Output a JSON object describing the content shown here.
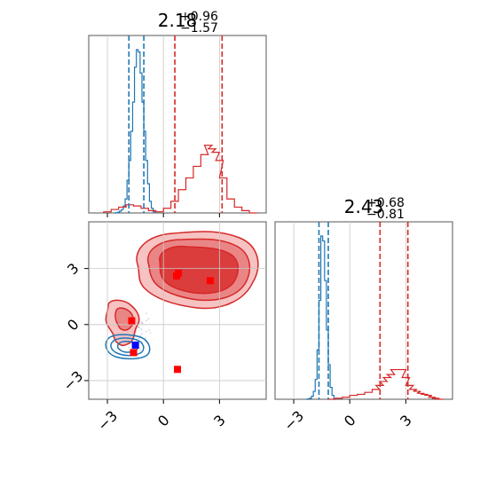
{
  "chart_data": [
    {
      "type": "histogram",
      "panel": "marginal-x",
      "title_main": "2.18",
      "title_sup": "+0.96",
      "title_sub": "−1.57",
      "xlim": [
        -4.0,
        5.5
      ],
      "series": [
        {
          "color": "#1f77b4",
          "quantiles": [
            -1.85,
            -1.05
          ],
          "x": [
            -2.6,
            -2.5,
            -2.4,
            -2.3,
            -2.2,
            -2.1,
            -2.0,
            -1.9,
            -1.8,
            -1.7,
            -1.6,
            -1.5,
            -1.4,
            -1.3,
            -1.2,
            -1.1,
            -1.0,
            -0.9,
            -0.8,
            -0.7,
            -0.6,
            -0.5
          ],
          "y": [
            0,
            0.2,
            0.6,
            1.5,
            3,
            6,
            12,
            28,
            45,
            70,
            95,
            125,
            140,
            138,
            120,
            95,
            70,
            45,
            25,
            10,
            4,
            1
          ]
        },
        {
          "color": "#d62728",
          "quantiles": [
            0.61,
            3.14
          ],
          "x": [
            -3.0,
            -2.6,
            -2.2,
            -1.8,
            -1.4,
            -1.0,
            -0.6,
            -0.2,
            0.2,
            0.6,
            1.0,
            1.4,
            1.8,
            2.2,
            2.4,
            2.6,
            2.8,
            3.0,
            3.2,
            3.6,
            4.0,
            4.4,
            4.8
          ],
          "y": [
            1,
            3,
            5,
            7,
            6,
            4,
            2,
            1,
            4,
            10,
            20,
            30,
            40,
            50,
            58,
            55,
            52,
            45,
            30,
            12,
            5,
            2,
            0
          ]
        }
      ]
    },
    {
      "type": "contour",
      "panel": "joint",
      "xlim": [
        -4.0,
        5.5
      ],
      "ylim": [
        -4.0,
        5.5
      ],
      "xticks": [
        "−3",
        "0",
        "3"
      ],
      "yticks": [
        "−3",
        "0",
        "3"
      ],
      "red_markers": [
        [
          0.8,
          2.75
        ],
        [
          0.7,
          2.6
        ],
        [
          2.5,
          2.35
        ],
        [
          -1.7,
          0.2
        ],
        [
          -1.6,
          -1.5
        ],
        [
          0.75,
          -2.4
        ]
      ],
      "blue_markers": [
        [
          -1.5,
          -1.1
        ]
      ]
    },
    {
      "type": "histogram",
      "panel": "marginal-y",
      "title_main": "2.43",
      "title_sup": "+0.68",
      "title_sub": "−0.81",
      "xlim": [
        -4.0,
        5.5
      ],
      "xticks": [
        "−3",
        "0",
        "3"
      ],
      "series": [
        {
          "color": "#1f77b4",
          "quantiles": [
            -1.65,
            -1.15
          ],
          "x": [
            -2.3,
            -2.2,
            -2.1,
            -2.0,
            -1.9,
            -1.8,
            -1.7,
            -1.6,
            -1.5,
            -1.4,
            -1.3,
            -1.2,
            -1.1,
            -1.0,
            -0.9,
            -0.8
          ],
          "y": [
            0,
            0.5,
            1,
            3,
            8,
            20,
            50,
            100,
            165,
            160,
            120,
            70,
            35,
            12,
            4,
            0
          ]
        },
        {
          "color": "#d62728",
          "quantiles": [
            1.62,
            3.11
          ],
          "x": [
            -1.0,
            -0.6,
            -0.2,
            0.2,
            0.6,
            1.0,
            1.4,
            1.6,
            1.8,
            2.0,
            2.2,
            2.4,
            2.6,
            2.8,
            3.0,
            3.2,
            3.4,
            3.6,
            3.8,
            4.0,
            4.2,
            4.4,
            4.6,
            4.8
          ],
          "y": [
            0,
            1,
            2,
            4,
            5,
            7,
            10,
            14,
            18,
            22,
            25,
            30,
            30,
            30,
            22,
            14,
            10,
            8,
            6,
            5,
            4,
            2,
            1,
            0
          ]
        }
      ]
    }
  ]
}
